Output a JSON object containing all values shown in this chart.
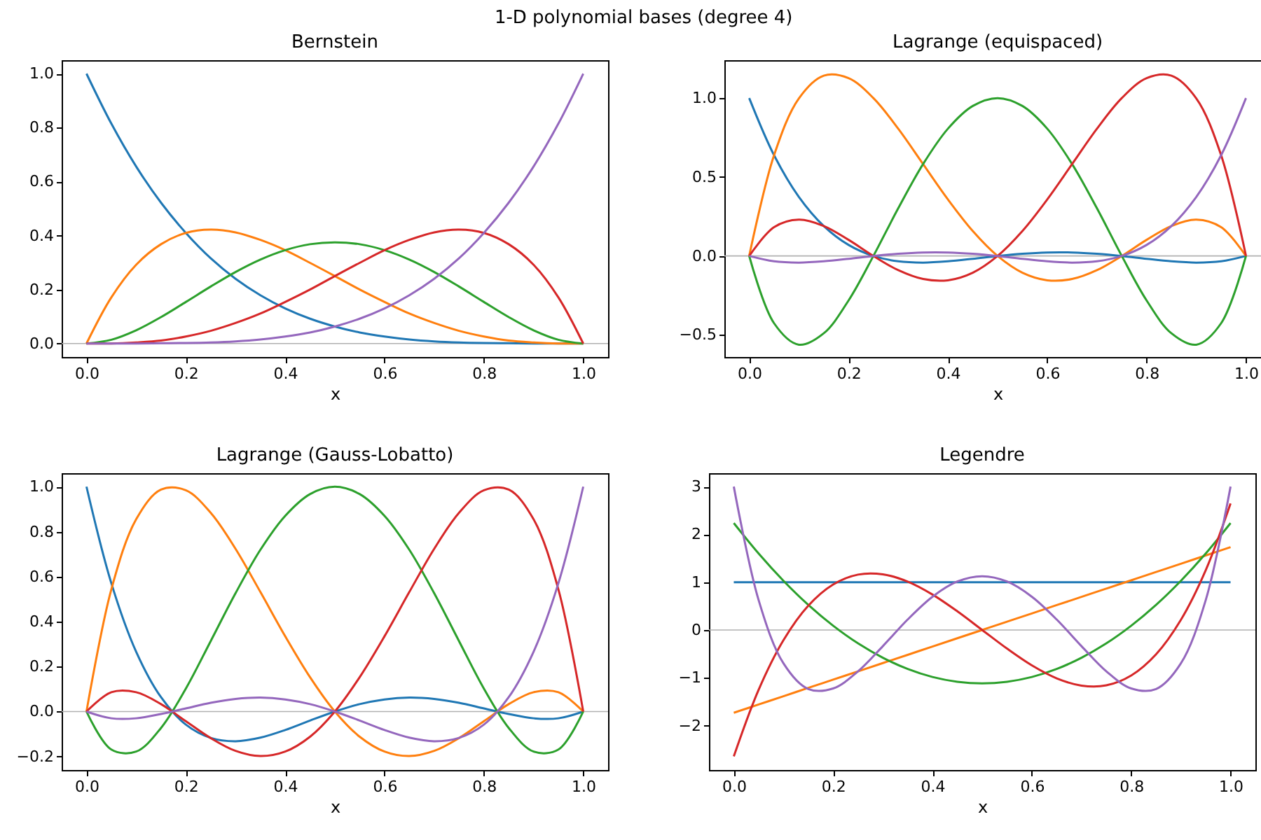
{
  "chart_data": [
    {
      "type": "line",
      "title": "Bernstein",
      "xlabel": "x",
      "annotations": [
        "1-D polynomial bases (degree 4)"
      ],
      "x": [
        0,
        0.05,
        0.1,
        0.15,
        0.2,
        0.25,
        0.3,
        0.35,
        0.4,
        0.45,
        0.5,
        0.55,
        0.6,
        0.65,
        0.7,
        0.75,
        0.8,
        0.85,
        0.9,
        0.95,
        1
      ],
      "xlim": [
        -0.05,
        1.05
      ],
      "xticks": [
        {
          "value": 0,
          "label": "0.0"
        },
        {
          "value": 0.2,
          "label": "0.2"
        },
        {
          "value": 0.4,
          "label": "0.4"
        },
        {
          "value": 0.6,
          "label": "0.6"
        },
        {
          "value": 0.8,
          "label": "0.8"
        },
        {
          "value": 1,
          "label": "1.0"
        }
      ],
      "ylim": [
        -0.05,
        1.05
      ],
      "yticks": [
        {
          "value": 0,
          "label": "0.0"
        },
        {
          "value": 0.2,
          "label": "0.2"
        },
        {
          "value": 0.4,
          "label": "0.4"
        },
        {
          "value": 0.6,
          "label": "0.6"
        },
        {
          "value": 0.8,
          "label": "0.8"
        },
        {
          "value": 1,
          "label": "1.0"
        }
      ],
      "ref_lines": [
        {
          "axis": "y",
          "value": 0,
          "color": "#b0b0b0"
        }
      ],
      "series": [
        {
          "color": "#1f77b4",
          "values": [
            1,
            0.815,
            0.656,
            0.522,
            0.41,
            0.316,
            0.24,
            0.179,
            0.13,
            0.092,
            0.063,
            0.041,
            0.026,
            0.015,
            0.008,
            0.004,
            0.002,
            0.001,
            0,
            0,
            0
          ]
        },
        {
          "color": "#ff7f0e",
          "values": [
            0,
            0.171,
            0.292,
            0.368,
            0.41,
            0.422,
            0.412,
            0.384,
            0.346,
            0.299,
            0.25,
            0.2,
            0.154,
            0.111,
            0.076,
            0.047,
            0.026,
            0.011,
            0.004,
            0,
            0
          ]
        },
        {
          "color": "#2ca02c",
          "values": [
            0,
            0.014,
            0.049,
            0.098,
            0.154,
            0.211,
            0.265,
            0.311,
            0.346,
            0.368,
            0.375,
            0.368,
            0.346,
            0.311,
            0.265,
            0.211,
            0.154,
            0.098,
            0.049,
            0.014,
            0
          ]
        },
        {
          "color": "#d62728",
          "values": [
            0,
            0,
            0.004,
            0.011,
            0.026,
            0.047,
            0.076,
            0.111,
            0.154,
            0.2,
            0.25,
            0.299,
            0.346,
            0.384,
            0.412,
            0.422,
            0.41,
            0.368,
            0.292,
            0.171,
            0
          ]
        },
        {
          "color": "#9467bd",
          "values": [
            0,
            0,
            0,
            0.001,
            0.002,
            0.004,
            0.008,
            0.015,
            0.026,
            0.041,
            0.063,
            0.092,
            0.13,
            0.179,
            0.24,
            0.316,
            0.41,
            0.522,
            0.656,
            0.815,
            1
          ]
        }
      ]
    },
    {
      "type": "line",
      "title": "Lagrange (equispaced)",
      "xlabel": "x",
      "x": [
        0,
        0.05,
        0.1,
        0.15,
        0.2,
        0.25,
        0.3,
        0.35,
        0.4,
        0.45,
        0.5,
        0.55,
        0.6,
        0.65,
        0.7,
        0.75,
        0.8,
        0.85,
        0.9,
        0.95,
        1
      ],
      "xlim": [
        -0.05,
        1.05
      ],
      "xticks": [
        {
          "value": 0,
          "label": "0.0"
        },
        {
          "value": 0.2,
          "label": "0.2"
        },
        {
          "value": 0.4,
          "label": "0.4"
        },
        {
          "value": 0.6,
          "label": "0.6"
        },
        {
          "value": 0.8,
          "label": "0.8"
        },
        {
          "value": 1,
          "label": "1.0"
        }
      ],
      "ylim": [
        -0.64,
        1.24
      ],
      "yticks": [
        {
          "value": -0.5,
          "label": "−0.5"
        },
        {
          "value": 0,
          "label": "0.0"
        },
        {
          "value": 0.5,
          "label": "0.5"
        },
        {
          "value": 1,
          "label": "1.0"
        }
      ],
      "ref_lines": [
        {
          "axis": "y",
          "value": 0,
          "color": "#b0b0b0"
        }
      ],
      "series": [
        {
          "color": "#1f77b4",
          "values": [
            1,
            0.638,
            0.374,
            0.19,
            0.07,
            0,
            -0.034,
            -0.042,
            -0.034,
            -0.018,
            0,
            0.014,
            0.022,
            0.022,
            0.014,
            0,
            -0.018,
            -0.034,
            -0.042,
            -0.034,
            0
          ]
        },
        {
          "color": "#ff7f0e",
          "values": [
            0,
            0.638,
            0.998,
            1.142,
            1.126,
            1,
            0.806,
            0.582,
            0.358,
            0.158,
            0,
            -0.106,
            -0.154,
            -0.146,
            -0.09,
            0,
            0.102,
            0.19,
            0.23,
            0.182,
            0
          ]
        },
        {
          "color": "#2ca02c",
          "values": [
            0,
            -0.426,
            -0.562,
            -0.49,
            -0.282,
            0,
            0.302,
            0.582,
            0.806,
            0.95,
            1,
            0.95,
            0.806,
            0.582,
            0.302,
            0,
            -0.282,
            -0.49,
            -0.562,
            -0.426,
            0
          ]
        },
        {
          "color": "#d62728",
          "values": [
            0,
            0.182,
            0.23,
            0.19,
            0.102,
            0,
            -0.09,
            -0.146,
            -0.154,
            -0.106,
            0,
            0.158,
            0.358,
            0.582,
            0.806,
            1,
            1.126,
            1.142,
            0.998,
            0.638,
            0
          ]
        },
        {
          "color": "#9467bd",
          "values": [
            0,
            -0.034,
            -0.042,
            -0.034,
            -0.018,
            0,
            0.014,
            0.022,
            0.022,
            0.014,
            0,
            -0.018,
            -0.034,
            -0.042,
            -0.034,
            0,
            0.07,
            0.19,
            0.374,
            0.638,
            1
          ]
        }
      ]
    },
    {
      "type": "line",
      "title": "Lagrange (Gauss-Lobatto)",
      "xlabel": "x",
      "x": [
        0,
        0.05,
        0.1,
        0.15,
        0.2,
        0.25,
        0.3,
        0.35,
        0.4,
        0.45,
        0.5,
        0.55,
        0.6,
        0.65,
        0.7,
        0.75,
        0.8,
        0.85,
        0.9,
        0.95,
        1
      ],
      "xlim": [
        -0.05,
        1.05
      ],
      "xticks": [
        {
          "value": 0,
          "label": "0.0"
        },
        {
          "value": 0.2,
          "label": "0.2"
        },
        {
          "value": 0.4,
          "label": "0.4"
        },
        {
          "value": 0.6,
          "label": "0.6"
        },
        {
          "value": 0.8,
          "label": "0.8"
        },
        {
          "value": 1,
          "label": "1.0"
        }
      ],
      "ylim": [
        -0.26,
        1.06
      ],
      "yticks": [
        {
          "value": -0.2,
          "label": "−0.2"
        },
        {
          "value": 0,
          "label": "0.0"
        },
        {
          "value": 0.2,
          "label": "0.2"
        },
        {
          "value": 0.4,
          "label": "0.4"
        },
        {
          "value": 0.6,
          "label": "0.6"
        },
        {
          "value": 0.8,
          "label": "0.8"
        },
        {
          "value": 1,
          "label": "1.0"
        }
      ],
      "ref_lines": [
        {
          "axis": "y",
          "value": 0,
          "color": "#b0b0b0"
        }
      ],
      "series": [
        {
          "color": "#1f77b4",
          "values": [
            1,
            0.571,
            0.266,
            0.064,
            -0.058,
            -0.117,
            -0.132,
            -0.116,
            -0.082,
            -0.04,
            0,
            0.033,
            0.054,
            0.062,
            0.056,
            0.039,
            0.014,
            -0.011,
            -0.03,
            -0.03,
            0
          ]
        },
        {
          "color": "#ff7f0e",
          "values": [
            0,
            0.543,
            0.855,
            0.987,
            0.984,
            0.884,
            0.724,
            0.532,
            0.335,
            0.153,
            0,
            -0.112,
            -0.178,
            -0.198,
            -0.175,
            -0.118,
            -0.043,
            0.033,
            0.086,
            0.086,
            0
          ]
        },
        {
          "color": "#2ca02c",
          "values": [
            0,
            -0.169,
            -0.178,
            -0.073,
            0.102,
            0.313,
            0.526,
            0.719,
            0.87,
            0.967,
            1,
            0.967,
            0.87,
            0.719,
            0.526,
            0.313,
            0.102,
            -0.073,
            -0.178,
            -0.169,
            0
          ]
        },
        {
          "color": "#d62728",
          "values": [
            0,
            0.086,
            0.086,
            0.033,
            -0.043,
            -0.118,
            -0.175,
            -0.198,
            -0.178,
            -0.112,
            0,
            0.153,
            0.335,
            0.532,
            0.724,
            0.884,
            0.984,
            0.987,
            0.855,
            0.543,
            0
          ]
        },
        {
          "color": "#9467bd",
          "values": [
            0,
            -0.03,
            -0.03,
            -0.011,
            0.014,
            0.039,
            0.056,
            0.062,
            0.054,
            0.033,
            0,
            -0.04,
            -0.082,
            -0.116,
            -0.132,
            -0.117,
            -0.058,
            0.064,
            0.266,
            0.571,
            1
          ]
        }
      ]
    },
    {
      "type": "line",
      "title": "Legendre",
      "xlabel": "x",
      "x": [
        0,
        0.05,
        0.1,
        0.15,
        0.2,
        0.25,
        0.3,
        0.35,
        0.4,
        0.45,
        0.5,
        0.55,
        0.6,
        0.65,
        0.7,
        0.75,
        0.8,
        0.85,
        0.9,
        0.95,
        1
      ],
      "xlim": [
        -0.05,
        1.05
      ],
      "xticks": [
        {
          "value": 0,
          "label": "0.0"
        },
        {
          "value": 0.2,
          "label": "0.2"
        },
        {
          "value": 0.4,
          "label": "0.4"
        },
        {
          "value": 0.6,
          "label": "0.6"
        },
        {
          "value": 0.8,
          "label": "0.8"
        },
        {
          "value": 1,
          "label": "1.0"
        }
      ],
      "ylim": [
        -2.93,
        3.28
      ],
      "yticks": [
        {
          "value": -2,
          "label": "−2"
        },
        {
          "value": -1,
          "label": "−1"
        },
        0,
        1,
        2,
        3
      ],
      "ref_lines": [
        {
          "axis": "y",
          "value": 0,
          "color": "#b0b0b0"
        }
      ],
      "series": [
        {
          "color": "#1f77b4",
          "values": [
            1,
            1,
            1,
            1,
            1,
            1,
            1,
            1,
            1,
            1,
            1,
            1,
            1,
            1,
            1,
            1,
            1,
            1,
            1,
            1,
            1
          ]
        },
        {
          "color": "#ff7f0e",
          "values": [
            -1.732,
            -1.559,
            -1.386,
            -1.212,
            -1.039,
            -0.866,
            -0.693,
            -0.52,
            -0.346,
            -0.173,
            0,
            0.173,
            0.346,
            0.52,
            0.693,
            0.866,
            1.039,
            1.212,
            1.386,
            1.559,
            1.732
          ]
        },
        {
          "color": "#2ca02c",
          "values": [
            2.236,
            1.599,
            1.029,
            0.525,
            0.089,
            -0.28,
            -0.581,
            -0.816,
            -0.984,
            -1.084,
            -1.118,
            -1.084,
            -0.984,
            -0.816,
            -0.581,
            -0.28,
            0.089,
            0.525,
            1.029,
            1.599,
            2.236
          ]
        },
        {
          "color": "#d62728",
          "values": [
            -2.646,
            -1.25,
            -0.212,
            0.509,
            0.952,
            1.158,
            1.164,
            1.012,
            0.741,
            0.39,
            0,
            -0.39,
            -0.741,
            -1.012,
            -1.164,
            -1.158,
            -0.952,
            -0.509,
            0.212,
            1.25,
            2.646
          ]
        },
        {
          "color": "#9467bd",
          "values": [
            3,
            0.624,
            -0.699,
            -1.236,
            -1.224,
            -0.867,
            -0.339,
            0.219,
            0.696,
            1.014,
            1.125,
            1.014,
            0.696,
            0.219,
            -0.339,
            -0.867,
            -1.224,
            -1.236,
            -0.699,
            0.624,
            3
          ]
        }
      ]
    }
  ]
}
